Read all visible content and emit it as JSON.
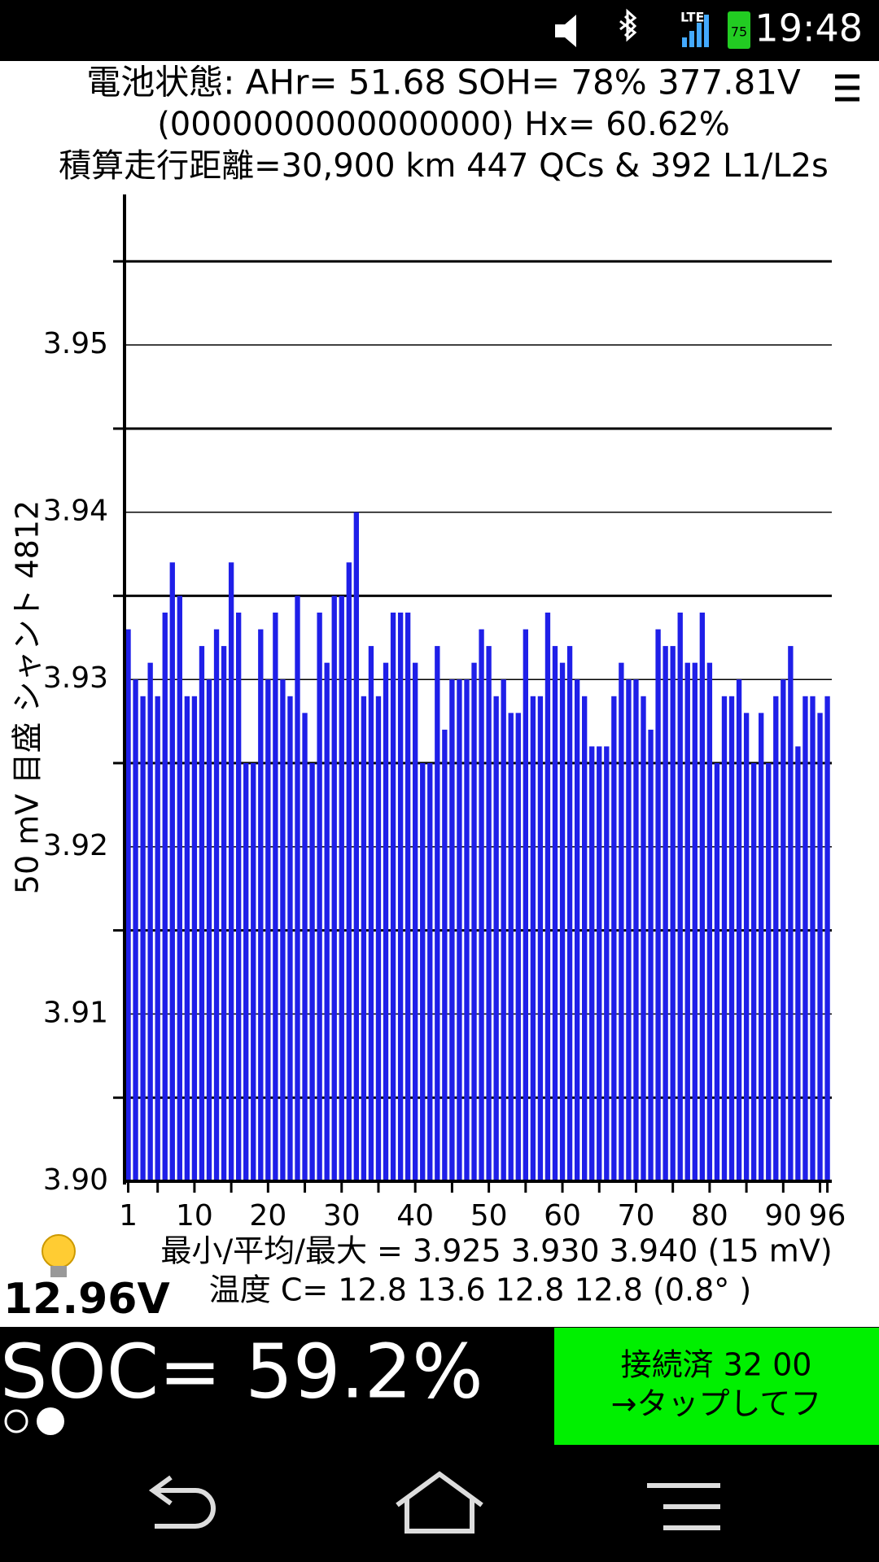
{
  "status_bar": {
    "network": "LTE",
    "battery": "75",
    "time": "19:48"
  },
  "header": {
    "line1": "電池状態: AHr= 51.68 SOH= 78% 377.81V",
    "line2": "(0000000000000000)   Hx= 60.62%",
    "line3": "積算走行距離=30,900 km  447 QCs  &  392 L1/L2s"
  },
  "chart_data": {
    "type": "bar",
    "y_label": "50 mV 目盛  シャント 4812",
    "color": "#1f1fe8",
    "grid": true,
    "x": [
      1,
      2,
      3,
      4,
      5,
      6,
      7,
      8,
      9,
      10,
      11,
      12,
      13,
      14,
      15,
      16,
      17,
      18,
      19,
      20,
      21,
      22,
      23,
      24,
      25,
      26,
      27,
      28,
      29,
      30,
      31,
      32,
      33,
      34,
      35,
      36,
      37,
      38,
      39,
      40,
      41,
      42,
      43,
      44,
      45,
      46,
      47,
      48,
      49,
      50,
      51,
      52,
      53,
      54,
      55,
      56,
      57,
      58,
      59,
      60,
      61,
      62,
      63,
      64,
      65,
      66,
      67,
      68,
      69,
      70,
      71,
      72,
      73,
      74,
      75,
      76,
      77,
      78,
      79,
      80,
      81,
      82,
      83,
      84,
      85,
      86,
      87,
      88,
      89,
      90,
      91,
      92,
      93,
      94,
      95,
      96
    ],
    "values": [
      3.933,
      3.93,
      3.929,
      3.931,
      3.929,
      3.934,
      3.937,
      3.935,
      3.929,
      3.929,
      3.932,
      3.93,
      3.933,
      3.932,
      3.937,
      3.934,
      3.925,
      3.925,
      3.933,
      3.93,
      3.934,
      3.93,
      3.929,
      3.935,
      3.928,
      3.925,
      3.934,
      3.931,
      3.935,
      3.935,
      3.937,
      3.94,
      3.929,
      3.932,
      3.929,
      3.931,
      3.934,
      3.934,
      3.934,
      3.931,
      3.925,
      3.925,
      3.932,
      3.927,
      3.93,
      3.93,
      3.93,
      3.931,
      3.933,
      3.932,
      3.929,
      3.93,
      3.928,
      3.928,
      3.933,
      3.929,
      3.929,
      3.934,
      3.932,
      3.931,
      3.932,
      3.93,
      3.929,
      3.926,
      3.926,
      3.926,
      3.929,
      3.931,
      3.93,
      3.93,
      3.929,
      3.927,
      3.933,
      3.932,
      3.932,
      3.934,
      3.931,
      3.931,
      3.934,
      3.931,
      3.925,
      3.929,
      3.929,
      3.93,
      3.928,
      3.925,
      3.928,
      3.925,
      3.929,
      3.93,
      3.932,
      3.926,
      3.929,
      3.929,
      3.928,
      3.929
    ],
    "xlim": [
      0.5,
      96.6
    ],
    "xticks": [
      1,
      10,
      20,
      30,
      40,
      50,
      60,
      70,
      80,
      90,
      96
    ],
    "minor_xticks": [
      5,
      15,
      25,
      35,
      45,
      55,
      65,
      75,
      85,
      95
    ],
    "ylim": [
      3.9,
      3.959
    ],
    "yticks": [
      {
        "value": 3.9,
        "label": "3.90"
      },
      3.91,
      3.92,
      3.93,
      3.94,
      3.95
    ],
    "minor_yticks": [
      3.905,
      3.915,
      3.925,
      3.935,
      3.945,
      3.955
    ]
  },
  "summary": {
    "cells": "最小/平均/最大 = 3.925 3.930 3.940  (15 mV)",
    "temps": "温度 C= 12.8  13.6  12.8  12.8  (0.8°  )",
    "aux_voltage": "12.96V"
  },
  "soc": "SOC= 59.2%",
  "button": {
    "line1": "接続済 32 00",
    "line2": "→タップしてフ"
  }
}
